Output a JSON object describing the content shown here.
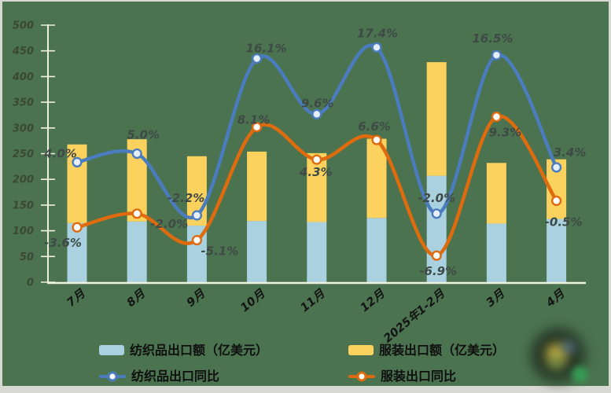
{
  "colors": {
    "background": "#4b7350",
    "frame_border": "#d9d9d4",
    "axis": "#eef0e0",
    "data_label": "#3f4a46",
    "y_tick_label": "#3a4532",
    "x_tick_label": "#141414",
    "legend_text": "#0f0f0f",
    "marker_fill_textile": "#e6eef9",
    "marker_fill_apparel": "#ffffff"
  },
  "chart_data": {
    "type": "combo: stacked bar + smooth line",
    "title": "",
    "categories": [
      "7月",
      "8月",
      "9月",
      "10月",
      "11月",
      "12月",
      "2025年1-2月",
      "3月",
      "4月"
    ],
    "series": [
      {
        "name": "纺织品出口额（亿美元）",
        "type": "bar",
        "stack": "export",
        "axis": "primary",
        "color": "#a9d1e0",
        "values": [
          115,
          118,
          110,
          119,
          117,
          125,
          207,
          114,
          123
        ]
      },
      {
        "name": "服装出口额（亿美元）",
        "type": "bar",
        "stack": "export",
        "axis": "primary",
        "color": "#fcd25f",
        "values": [
          153,
          160,
          135,
          135,
          134,
          154,
          221,
          118,
          116
        ]
      },
      {
        "name": "纺织品出口同比",
        "type": "line",
        "axis": "secondary",
        "color": "#4a7cbe",
        "values": [
          4.0,
          5.0,
          -2.2,
          16.1,
          9.6,
          17.4,
          -2.0,
          16.5,
          3.4
        ],
        "labels": [
          "4.0%",
          "5.0%",
          "-2.2%",
          "16.1%",
          "9.6%",
          "17.4%",
          "-2.0%",
          "16.5%",
          "3.4%"
        ],
        "label_offsets": [
          [
            -21,
            -11
          ],
          [
            8,
            -24
          ],
          [
            -14,
            -22
          ],
          [
            12,
            -13
          ],
          [
            1,
            -14
          ],
          [
            1,
            -18
          ],
          [
            0,
            -20
          ],
          [
            -5,
            -21
          ],
          [
            17,
            -19
          ]
        ]
      },
      {
        "name": "服装出口同比",
        "type": "line",
        "axis": "secondary",
        "color": "#de6b0d",
        "values": [
          -3.6,
          -2.0,
          -5.1,
          8.1,
          4.3,
          6.6,
          -6.9,
          9.3,
          -0.5
        ],
        "labels": [
          "-3.6%",
          "-2.0%",
          "-5.1%",
          "8.1%",
          "4.3%",
          "6.6%",
          "-6.9%",
          "9.3%",
          "-0.5%"
        ],
        "label_offsets": [
          [
            -18,
            20
          ],
          [
            41,
            13
          ],
          [
            29,
            14
          ],
          [
            -4,
            -9
          ],
          [
            -1,
            16
          ],
          [
            -3,
            -17
          ],
          [
            2,
            20
          ],
          [
            11,
            20
          ],
          [
            9,
            27
          ]
        ]
      }
    ],
    "y_axis": {
      "min": 0,
      "max": 500,
      "step": 50,
      "side": "left",
      "visible": true
    },
    "y2_axis": {
      "min": -10,
      "max": 20,
      "visible": false,
      "note": "hidden secondary axis used by the % lines"
    },
    "grid": false,
    "legend_position": "bottom"
  }
}
